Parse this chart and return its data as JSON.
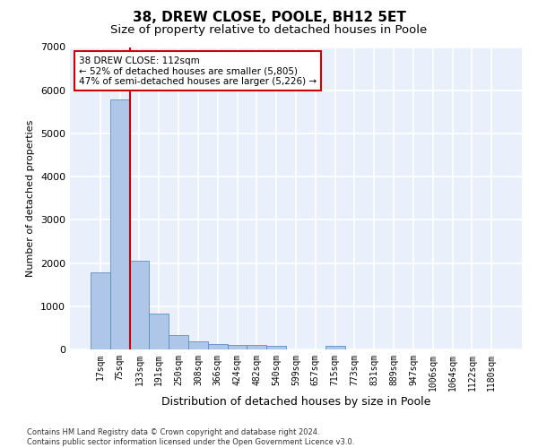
{
  "title1": "38, DREW CLOSE, POOLE, BH12 5ET",
  "title2": "Size of property relative to detached houses in Poole",
  "xlabel": "Distribution of detached houses by size in Poole",
  "ylabel": "Number of detached properties",
  "bar_labels": [
    "17sqm",
    "75sqm",
    "133sqm",
    "191sqm",
    "250sqm",
    "308sqm",
    "366sqm",
    "424sqm",
    "482sqm",
    "540sqm",
    "599sqm",
    "657sqm",
    "715sqm",
    "773sqm",
    "831sqm",
    "889sqm",
    "947sqm",
    "1006sqm",
    "1064sqm",
    "1122sqm",
    "1180sqm"
  ],
  "bar_values": [
    1780,
    5780,
    2060,
    820,
    340,
    195,
    130,
    110,
    100,
    75,
    0,
    0,
    75,
    0,
    0,
    0,
    0,
    0,
    0,
    0,
    0
  ],
  "bar_color": "#aec6e8",
  "bar_edge_color": "#5a8fc0",
  "vline_color": "#cc0000",
  "annotation_text": "38 DREW CLOSE: 112sqm\n← 52% of detached houses are smaller (5,805)\n47% of semi-detached houses are larger (5,226) →",
  "annotation_box_color": "#ffffff",
  "annotation_box_edge": "#cc0000",
  "ylim": [
    0,
    7000
  ],
  "yticks": [
    0,
    1000,
    2000,
    3000,
    4000,
    5000,
    6000,
    7000
  ],
  "background_color": "#eaf0fb",
  "grid_color": "#ffffff",
  "footnote": "Contains HM Land Registry data © Crown copyright and database right 2024.\nContains public sector information licensed under the Open Government Licence v3.0.",
  "title1_fontsize": 11,
  "title2_fontsize": 9.5,
  "xlabel_fontsize": 9,
  "ylabel_fontsize": 8,
  "tick_fontsize": 7
}
